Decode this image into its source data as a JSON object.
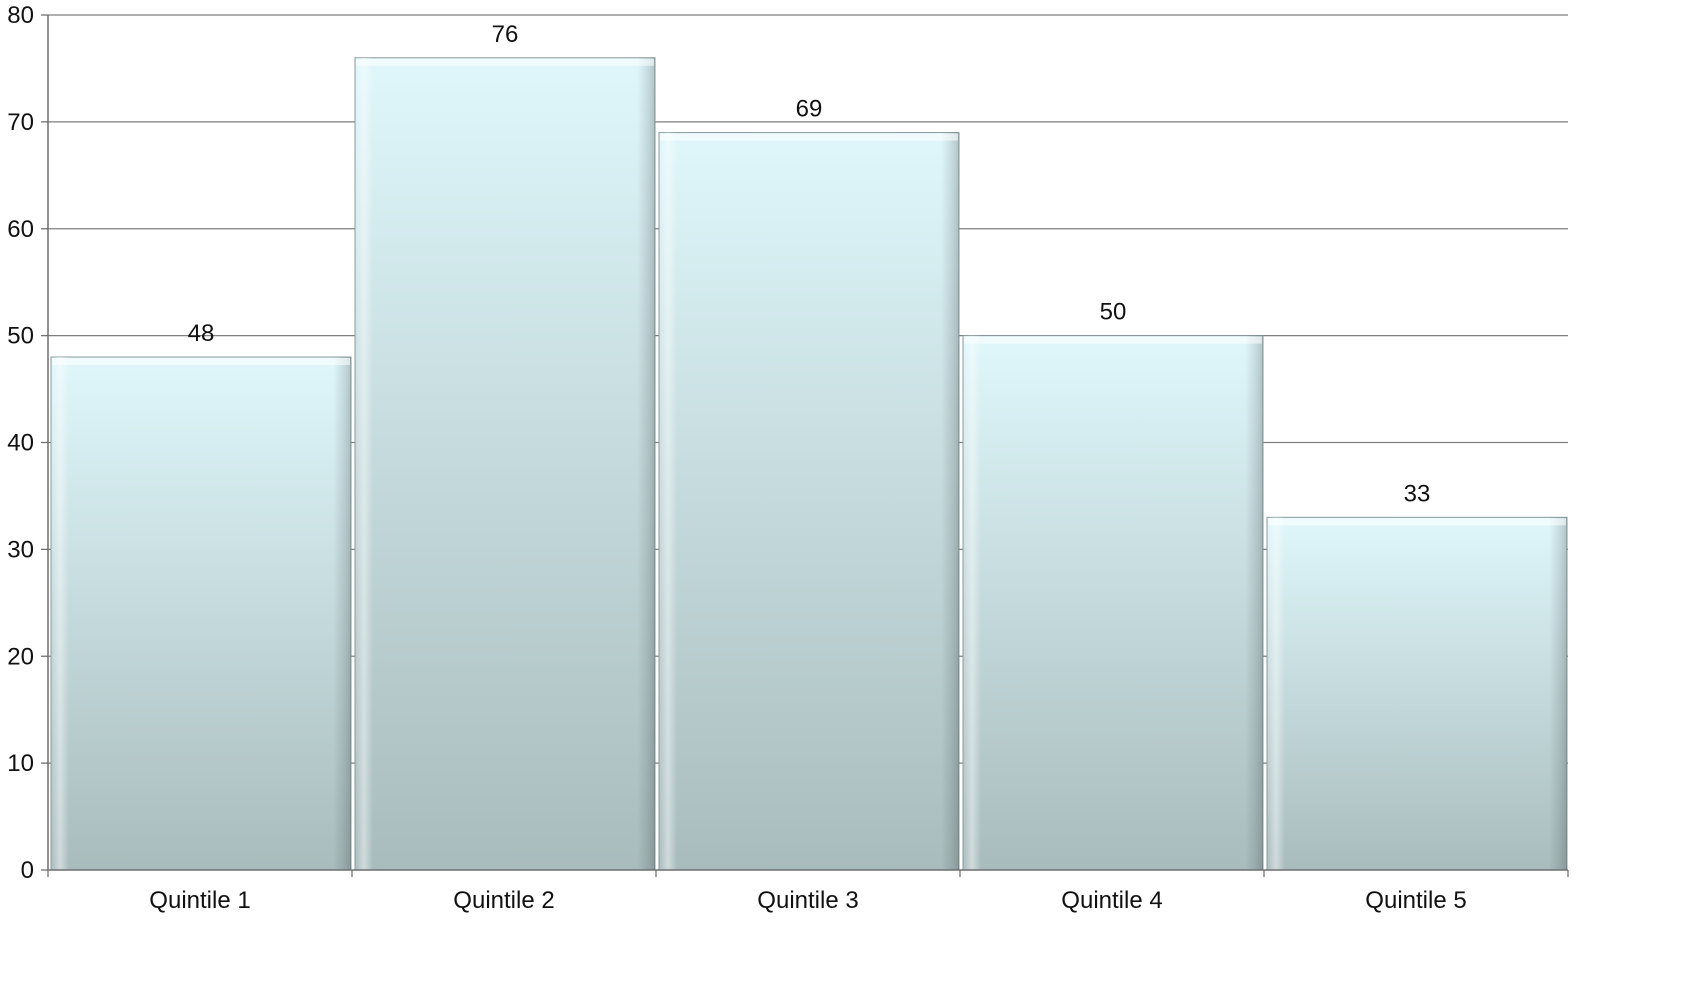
{
  "chart_data": {
    "type": "bar",
    "categories": [
      "Quintile 1",
      "Quintile 2",
      "Quintile 3",
      "Quintile 4",
      "Quintile 5"
    ],
    "values": [
      48,
      76,
      69,
      50,
      33
    ],
    "data_labels": [
      "48",
      "76",
      "69",
      "50",
      "33"
    ],
    "title": "",
    "xlabel": "",
    "ylabel": "",
    "ylim": [
      0,
      80
    ],
    "yticks": [
      0,
      10,
      20,
      30,
      40,
      50,
      60,
      70,
      80
    ],
    "grid": "horizontal",
    "legend": "none",
    "colors": {
      "bar_top": "#dff7fb",
      "bar_bottom": "#a9bcbd",
      "bar_edge": "#8a9a9b",
      "gridline": "#7f7f7f",
      "axis": "#6f6f6f",
      "text": "#111111"
    }
  }
}
